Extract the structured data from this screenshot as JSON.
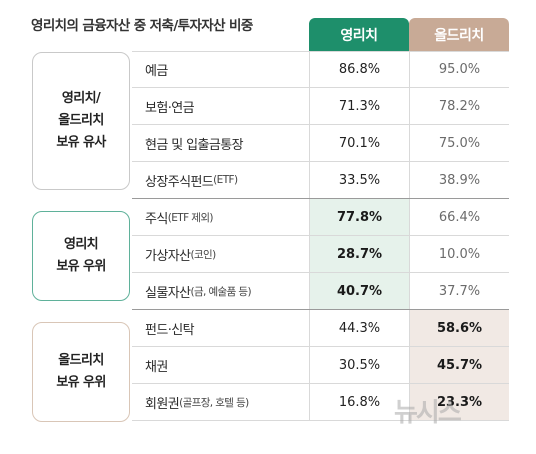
{
  "title": "영리치의 금융자산 중 저축/투자자산 비중",
  "columns": {
    "young": "영리치",
    "old": "올드리치"
  },
  "groups": [
    {
      "lines": [
        "영리치/",
        "올드리치",
        "보유 유사"
      ]
    },
    {
      "lines": [
        "영리치",
        "보유 우위"
      ]
    },
    {
      "lines": [
        "올드리치",
        "보유 우위"
      ]
    }
  ],
  "rows": [
    {
      "label": "예금",
      "sub": "",
      "young": "86.8%",
      "old": "95.0%"
    },
    {
      "label": "보험·연금",
      "sub": "",
      "young": "71.3%",
      "old": "78.2%"
    },
    {
      "label": "현금 및 입출금통장",
      "sub": "",
      "young": "70.1%",
      "old": "75.0%"
    },
    {
      "label": "상장주식펀드",
      "sub": "(ETF)",
      "young": "33.5%",
      "old": "38.9%"
    },
    {
      "label": "주식",
      "sub": "(ETF 제외)",
      "young": "77.8%",
      "old": "66.4%"
    },
    {
      "label": "가상자산",
      "sub": "(코인)",
      "young": "28.7%",
      "old": "10.0%"
    },
    {
      "label": "실물자산",
      "sub": "(금, 예술품 등)",
      "young": "40.7%",
      "old": "37.7%"
    },
    {
      "label": "펀드·신탁",
      "sub": "",
      "young": "44.3%",
      "old": "58.6%"
    },
    {
      "label": "채권",
      "sub": "",
      "young": "30.5%",
      "old": "45.7%"
    },
    {
      "label": "회원권",
      "sub": "(골프장, 호텔 등)",
      "young": "16.8%",
      "old": "23.3%"
    }
  ],
  "watermark": "뉴시스"
}
